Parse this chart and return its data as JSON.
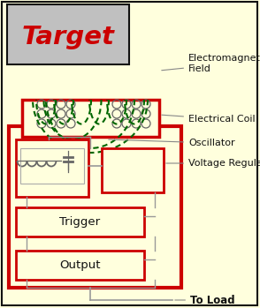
{
  "bg_color": "#FFFFDD",
  "red": "#CC0000",
  "dark_green": "#006600",
  "gray": "#888888",
  "light_gray": "#C0C0C0",
  "black": "#111111",
  "wire_color": "#999999",
  "coil_color": "#666666",
  "title": "Target",
  "title_color": "#CC0000",
  "label_em_field": "Electromagnetic\nField",
  "label_coil": "Electrical Coil",
  "label_osc": "Oscillator",
  "label_vreg": "Voltage Regulator",
  "label_trigger": "Trigger",
  "label_output": "Output",
  "label_load": "To Load",
  "figw": 2.94,
  "figh": 3.49,
  "dpi": 100
}
